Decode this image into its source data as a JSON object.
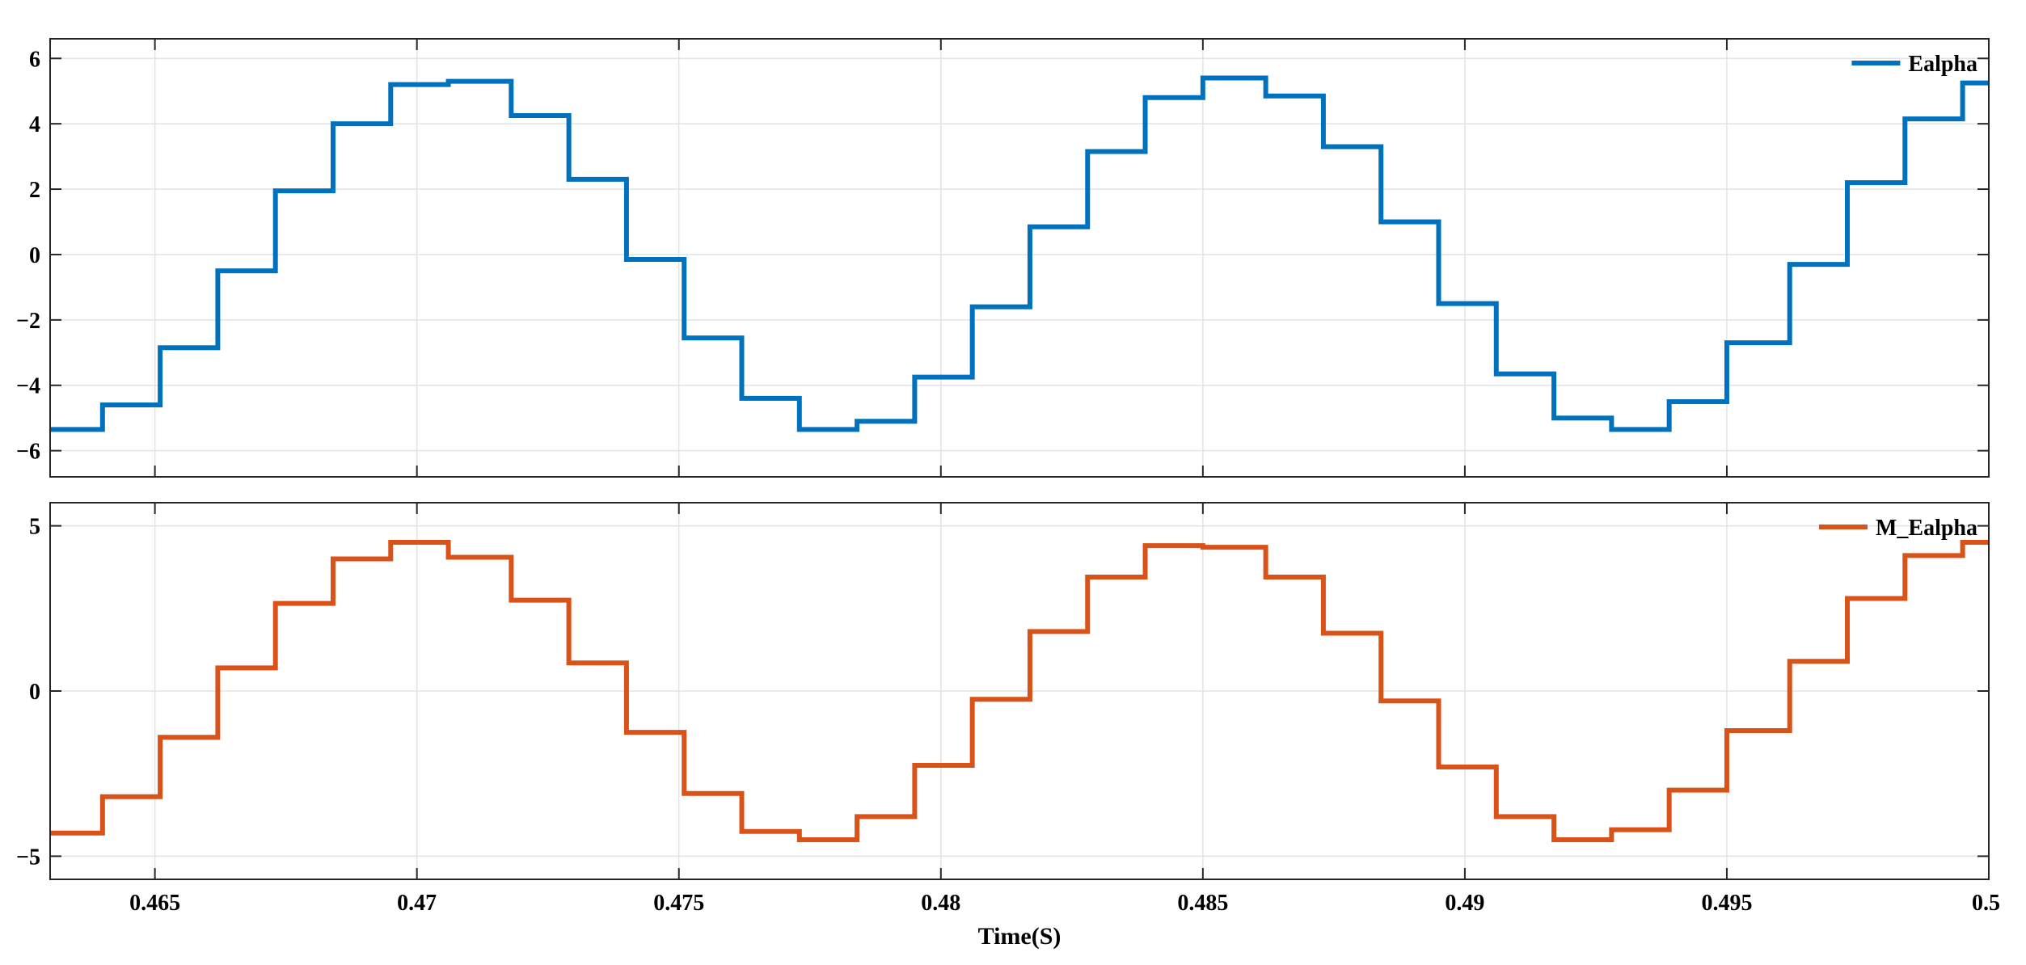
{
  "chart_data": [
    {
      "type": "line",
      "step": true,
      "xlim": [
        0.463,
        0.5
      ],
      "ylim": [
        -6.8,
        6.6
      ],
      "yticks": [
        -6,
        -4,
        -2,
        0,
        2,
        4,
        6
      ],
      "ytick_labels": [
        "−6",
        "−4",
        "−2",
        "0",
        "2",
        "4",
        "6"
      ],
      "grid": true,
      "legend_position": "top-right",
      "series": [
        {
          "name": "Ealpha",
          "color": "#0072BD",
          "x": [
            0.463,
            0.464,
            0.4651,
            0.4662,
            0.4673,
            0.4684,
            0.4695,
            0.4706,
            0.4718,
            0.4729,
            0.474,
            0.4751,
            0.4762,
            0.4773,
            0.4784,
            0.4795,
            0.4806,
            0.4817,
            0.4828,
            0.4839,
            0.485,
            0.4862,
            0.4873,
            0.4884,
            0.4895,
            0.4906,
            0.4917,
            0.4928,
            0.4939,
            0.495,
            0.4962,
            0.4973,
            0.4984,
            0.4995,
            0.5
          ],
          "y": [
            -5.35,
            -4.6,
            -2.85,
            -0.5,
            1.95,
            4.0,
            5.2,
            5.3,
            4.25,
            2.3,
            -0.15,
            -2.55,
            -4.4,
            -5.35,
            -5.1,
            -3.75,
            -1.6,
            0.85,
            3.15,
            4.8,
            5.4,
            4.85,
            3.3,
            1.0,
            -1.5,
            -3.65,
            -5.0,
            -5.35,
            -4.5,
            -2.7,
            -0.3,
            2.2,
            4.15,
            5.25,
            5.25
          ]
        }
      ]
    },
    {
      "type": "line",
      "step": true,
      "xlim": [
        0.463,
        0.5
      ],
      "ylim": [
        -5.7,
        5.7
      ],
      "yticks": [
        -5,
        0,
        5
      ],
      "ytick_labels": [
        "−5",
        "0",
        "5"
      ],
      "xticks": [
        0.465,
        0.47,
        0.475,
        0.48,
        0.485,
        0.49,
        0.495,
        0.5
      ],
      "xtick_labels": [
        "0.465",
        "0.47",
        "0.475",
        "0.48",
        "0.485",
        "0.49",
        "0.495",
        "0.5"
      ],
      "xlabel": "Time(S)",
      "grid": true,
      "legend_position": "top-right",
      "series": [
        {
          "name": "M_Ealpha",
          "color": "#D95319",
          "x": [
            0.463,
            0.464,
            0.4651,
            0.4662,
            0.4673,
            0.4684,
            0.4695,
            0.4706,
            0.4718,
            0.4729,
            0.474,
            0.4751,
            0.4762,
            0.4773,
            0.4784,
            0.4795,
            0.4806,
            0.4817,
            0.4828,
            0.4839,
            0.485,
            0.4862,
            0.4873,
            0.4884,
            0.4895,
            0.4906,
            0.4917,
            0.4928,
            0.4939,
            0.495,
            0.4962,
            0.4973,
            0.4984,
            0.4995,
            0.5
          ],
          "y": [
            -4.3,
            -3.2,
            -1.4,
            0.7,
            2.65,
            4.0,
            4.5,
            4.05,
            2.75,
            0.85,
            -1.25,
            -3.1,
            -4.25,
            -4.5,
            -3.8,
            -2.25,
            -0.25,
            1.8,
            3.45,
            4.4,
            4.35,
            3.45,
            1.75,
            -0.3,
            -2.3,
            -3.8,
            -4.5,
            -4.2,
            -3.0,
            -1.2,
            0.9,
            2.8,
            4.1,
            4.5,
            4.5
          ]
        }
      ]
    }
  ]
}
